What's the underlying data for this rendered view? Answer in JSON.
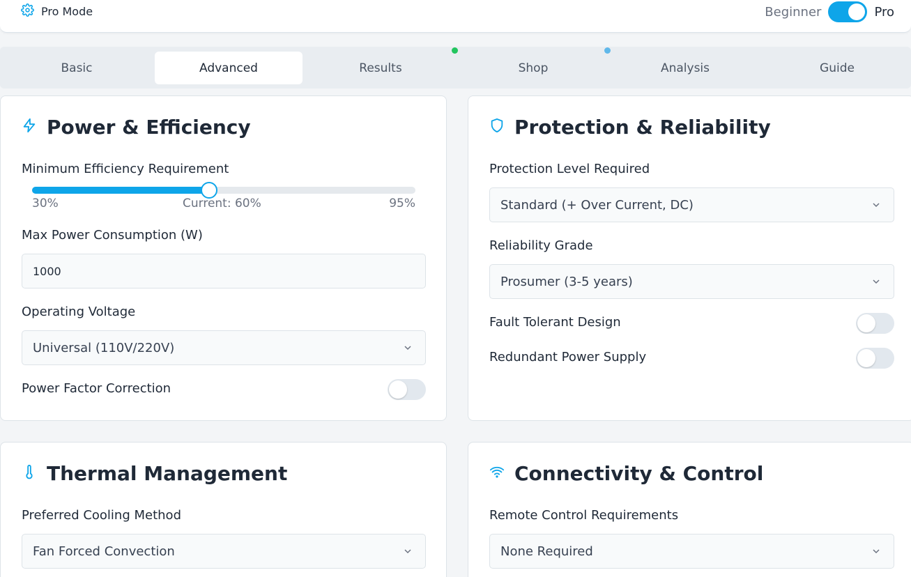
{
  "header": {
    "title": "Pro Mode",
    "mode_left_label": "Beginner",
    "mode_right_label": "Pro"
  },
  "tabs": [
    {
      "label": "Basic"
    },
    {
      "label": "Advanced"
    },
    {
      "label": "Results"
    },
    {
      "label": "Shop"
    },
    {
      "label": "Analysis"
    },
    {
      "label": "Guide"
    }
  ],
  "power": {
    "title": "Power & Efficiency",
    "efficiency_label": "Minimum Efficiency Requirement",
    "efficiency_min": "30%",
    "efficiency_current": "Current: 60%",
    "efficiency_max": "95%",
    "efficiency_value": 60,
    "efficiency_range": [
      30,
      95
    ],
    "max_power_label": "Max Power Consumption (W)",
    "max_power_value": "1000",
    "voltage_label": "Operating Voltage",
    "voltage_value": "Universal (110V/220V)",
    "pfc_label": "Power Factor Correction"
  },
  "protection": {
    "title": "Protection & Reliability",
    "level_label": "Protection Level Required",
    "level_value": "Standard (+ Over Current, DC)",
    "grade_label": "Reliability Grade",
    "grade_value": "Prosumer (3-5 years)",
    "fault_label": "Fault Tolerant Design",
    "redundant_label": "Redundant Power Supply"
  },
  "thermal": {
    "title": "Thermal Management",
    "cooling_label": "Preferred Cooling Method",
    "cooling_value": "Fan Forced Convection"
  },
  "connectivity": {
    "title": "Connectivity & Control",
    "remote_label": "Remote Control Requirements",
    "remote_value": "None Required"
  },
  "colors": {
    "accent": "#0ea5e9",
    "green_dot": "#22c55e",
    "blue_dot": "#60b8ea"
  }
}
